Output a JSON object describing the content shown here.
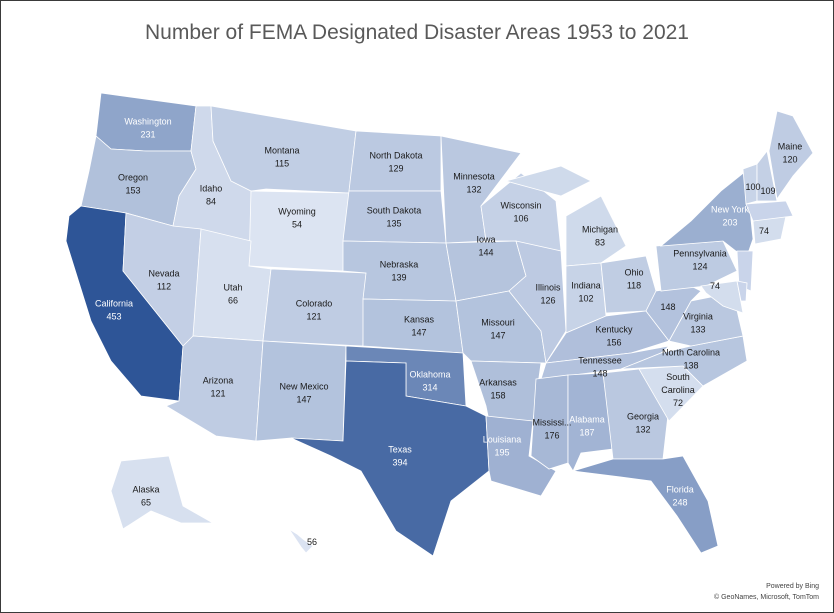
{
  "title": "Number of FEMA Designated Disaster Areas 1953 to 2021",
  "attribution": {
    "line1": "Powered by Bing",
    "line2": "© GeoNames, Microsoft, TomTom"
  },
  "colors": {
    "low": "#dce4f2",
    "high": "#2e5597",
    "border": "#ffffff",
    "label_dark": "#1a1a1a",
    "label_light": "#ffffff"
  },
  "chart_data": {
    "type": "choropleth",
    "title": "Number of FEMA Designated Disaster Areas 1953 to 2021",
    "value_range": [
      54,
      453
    ],
    "states": [
      {
        "name": "Washington",
        "label": "Washington",
        "value": 231
      },
      {
        "name": "Oregon",
        "label": "Oregon",
        "value": 153
      },
      {
        "name": "California",
        "label": "California",
        "value": 453
      },
      {
        "name": "Idaho",
        "label": "Idaho",
        "value": 84
      },
      {
        "name": "Nevada",
        "label": "Nevada",
        "value": 112
      },
      {
        "name": "Montana",
        "label": "Montana",
        "value": 115
      },
      {
        "name": "Wyoming",
        "label": "Wyoming",
        "value": 54
      },
      {
        "name": "Utah",
        "label": "Utah",
        "value": 66
      },
      {
        "name": "Arizona",
        "label": "Arizona",
        "value": 121
      },
      {
        "name": "Colorado",
        "label": "Colorado",
        "value": 121
      },
      {
        "name": "New Mexico",
        "label": "New Mexico",
        "value": 147
      },
      {
        "name": "North Dakota",
        "label": "North Dakota",
        "value": 129
      },
      {
        "name": "South Dakota",
        "label": "South Dakota",
        "value": 135
      },
      {
        "name": "Nebraska",
        "label": "Nebraska",
        "value": 139
      },
      {
        "name": "Kansas",
        "label": "Kansas",
        "value": 147
      },
      {
        "name": "Oklahoma",
        "label": "Oklahoma",
        "value": 314
      },
      {
        "name": "Texas",
        "label": "Texas",
        "value": 394
      },
      {
        "name": "Minnesota",
        "label": "Minnesota",
        "value": 132
      },
      {
        "name": "Iowa",
        "label": "Iowa",
        "value": 144
      },
      {
        "name": "Missouri",
        "label": "Missouri",
        "value": 147
      },
      {
        "name": "Arkansas",
        "label": "Arkansas",
        "value": 158
      },
      {
        "name": "Louisiana",
        "label": "Louisiana",
        "value": 195
      },
      {
        "name": "Wisconsin",
        "label": "Wisconsin",
        "value": 106
      },
      {
        "name": "Illinois",
        "label": "Illinois",
        "value": 126
      },
      {
        "name": "Michigan",
        "label": "Michigan",
        "value": 83
      },
      {
        "name": "Indiana",
        "label": "Indiana",
        "value": 102
      },
      {
        "name": "Ohio",
        "label": "Ohio",
        "value": 118
      },
      {
        "name": "Kentucky",
        "label": "Kentucky",
        "value": 156
      },
      {
        "name": "Tennessee",
        "label": "Tennessee",
        "value": 148
      },
      {
        "name": "Mississippi",
        "label": "Mississi...",
        "value": 176
      },
      {
        "name": "Alabama",
        "label": "Alabama",
        "value": 187
      },
      {
        "name": "Georgia",
        "label": "Georgia",
        "value": 132
      },
      {
        "name": "Florida",
        "label": "Florida",
        "value": 248
      },
      {
        "name": "South Carolina",
        "label": "South Carolina",
        "value": 72
      },
      {
        "name": "North Carolina",
        "label": "North Carolina",
        "value": 138
      },
      {
        "name": "Virginia",
        "label": "Virginia",
        "value": 133
      },
      {
        "name": "West Virginia",
        "label": "",
        "value": 148
      },
      {
        "name": "Pennsylvania",
        "label": "Pennsylvania",
        "value": 124
      },
      {
        "name": "New York",
        "label": "New York",
        "value": 203
      },
      {
        "name": "Maine",
        "label": "Maine",
        "value": 120
      },
      {
        "name": "Vermont",
        "label": "",
        "value": 100
      },
      {
        "name": "New Hampshire",
        "label": "",
        "value": 109
      },
      {
        "name": "Connecticut",
        "label": "",
        "value": 74
      },
      {
        "name": "Maryland",
        "label": "",
        "value": 74
      },
      {
        "name": "Alaska",
        "label": "Alaska",
        "value": 65
      },
      {
        "name": "Hawaii",
        "label": "",
        "value": 56
      },
      {
        "name": "Massachusetts",
        "label": "",
        "value": null
      },
      {
        "name": "New Jersey",
        "label": "",
        "value": null
      },
      {
        "name": "Delaware",
        "label": "",
        "value": null
      }
    ]
  }
}
